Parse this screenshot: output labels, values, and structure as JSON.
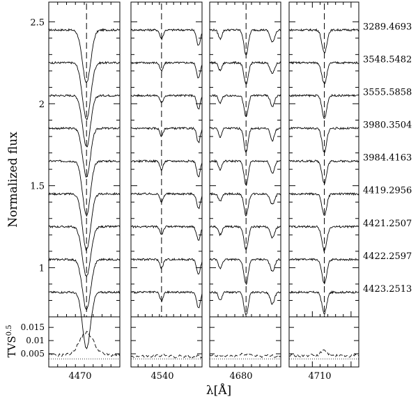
{
  "chart_data": {
    "type": "line",
    "xlabel": "λ[Å]",
    "ylabel_top": "Normalized flux",
    "ylabel_bottom": "TVS",
    "ylabel_bottom_exp": "0.5",
    "top_yticks": [
      "2.5",
      "2",
      "1.5",
      "1"
    ],
    "bottom_yticks": [
      "0.015",
      "0.01",
      "0.005"
    ],
    "epochs": [
      "3289.4693",
      "3548.5482",
      "3555.5858",
      "3980.3504",
      "3984.4163",
      "4419.2956",
      "4421.2507",
      "4422.2597",
      "4423.2513"
    ],
    "offsets": [
      2.45,
      2.25,
      2.05,
      1.85,
      1.65,
      1.45,
      1.25,
      1.05,
      0.85
    ],
    "panels": [
      {
        "center_label": "4470",
        "center": 4471.5,
        "xmin": 4463,
        "xmax": 4479,
        "lines": [
          {
            "c": 4471.5,
            "d": 0.32,
            "w": 0.9
          }
        ],
        "tvs": {
          "peak": 0.013,
          "base": 0.0045,
          "w": 1.6
        }
      },
      {
        "center_label": "4540",
        "center": 4541.6,
        "xmin": 4533,
        "xmax": 4553,
        "lines": [
          {
            "c": 4541.6,
            "d": 0.05,
            "w": 0.45
          },
          {
            "c": 4552,
            "d": 0.09,
            "w": 0.5
          }
        ],
        "tvs": {
          "peak": 0.0045,
          "base": 0.004,
          "w": 1.0
        }
      },
      {
        "center_label": "4680",
        "center": 4685.7,
        "xmin": 4677,
        "xmax": 4694,
        "lines": [
          {
            "c": 4685.7,
            "d": 0.14,
            "w": 0.5
          },
          {
            "c": 4679.5,
            "d": 0.05,
            "w": 0.4
          },
          {
            "c": 4692,
            "d": 0.07,
            "w": 0.5
          }
        ],
        "tvs": {
          "peak": 0.005,
          "base": 0.0042,
          "w": 1.0
        }
      },
      {
        "center_label": "4710",
        "center": 4713.1,
        "xmin": 4704,
        "xmax": 4722,
        "lines": [
          {
            "c": 4713.1,
            "d": 0.14,
            "w": 0.6
          }
        ],
        "tvs": {
          "peak": 0.0062,
          "base": 0.0043,
          "w": 0.8
        }
      }
    ],
    "top_ylim": [
      0.7,
      2.62
    ],
    "bottom_ylim": [
      0.0,
      0.019
    ],
    "tvs_threshold": 0.003
  }
}
